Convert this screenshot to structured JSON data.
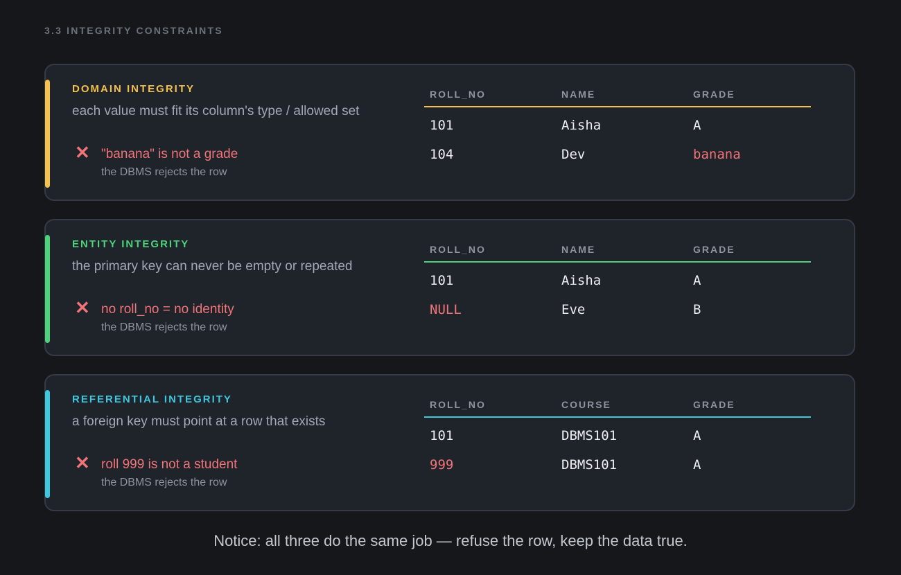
{
  "section_label": "3.3  INTEGRITY CONSTRAINTS",
  "cards": [
    {
      "title": "DOMAIN INTEGRITY",
      "accent_color": "#f4c04e",
      "description": "each value must fit its column's type / allowed set",
      "error_title": "\"banana\" is not a grade",
      "error_sub": "the DBMS rejects the row",
      "columns": [
        "ROLL_NO",
        "NAME",
        "GRADE"
      ],
      "rows": [
        [
          "101",
          "Aisha",
          "A"
        ],
        [
          "104",
          "Dev",
          "banana"
        ]
      ],
      "invalid_cell": "banana"
    },
    {
      "title": "ENTITY INTEGRITY",
      "accent_color": "#4ed17b",
      "description": "the primary key can never be empty or repeated",
      "error_title": "no roll_no = no identity",
      "error_sub": "the DBMS rejects the row",
      "columns": [
        "ROLL_NO",
        "NAME",
        "GRADE"
      ],
      "rows": [
        [
          "101",
          "Aisha",
          "A"
        ],
        [
          "NULL",
          "Eve",
          "B"
        ]
      ],
      "invalid_cell": "NULL"
    },
    {
      "title": "REFERENTIAL INTEGRITY",
      "accent_color": "#3ec7dd",
      "description": "a foreign key must point at a row that exists",
      "error_title": "roll 999 is not a student",
      "error_sub": "the DBMS rejects the row",
      "columns": [
        "ROLL_NO",
        "COURSE",
        "GRADE"
      ],
      "rows": [
        [
          "101",
          "DBMS101",
          "A"
        ],
        [
          "999",
          "DBMS101",
          "A"
        ]
      ],
      "invalid_cell": "999"
    }
  ],
  "error_icon": "x-mark",
  "error_icon_glyph": "✕",
  "error_color": "#f07478",
  "footer": "Notice: all three do the same job — refuse the row, keep the data true."
}
